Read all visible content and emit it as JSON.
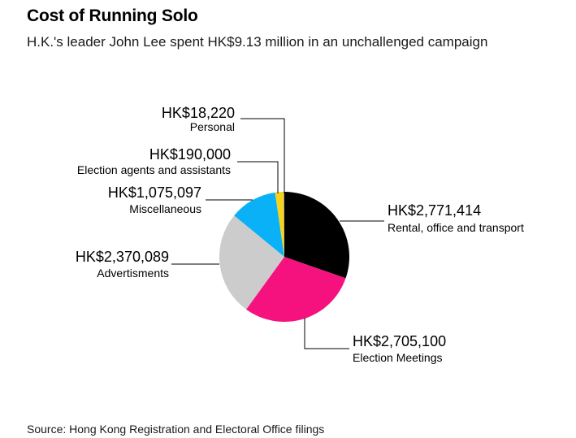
{
  "header": {
    "title": "Cost of Running Solo",
    "subtitle": "H.K.'s leader John Lee spent HK$9.13 million in an unchallenged campaign"
  },
  "footer": {
    "source": "Source: Hong Kong Registration and Electoral Office filings"
  },
  "chart_data": {
    "type": "pie",
    "title": "Cost of Running Solo",
    "subtitle": "H.K.'s leader John Lee spent HK$9.13 million in an unchallenged campaign",
    "slices": [
      {
        "category": "Rental, office and transport",
        "value": 2771414,
        "value_label": "HK$2,771,414",
        "color": "#000000"
      },
      {
        "category": "Election Meetings",
        "value": 2705100,
        "value_label": "HK$2,705,100",
        "color": "#f5127e"
      },
      {
        "category": "Advertisments",
        "value": 2370089,
        "value_label": "HK$2,370,089",
        "color": "#cccccc"
      },
      {
        "category": "Miscellaneous",
        "value": 1075097,
        "value_label": "HK$1,075,097",
        "color": "#0ab1f6"
      },
      {
        "category": "Election agents and assistants",
        "value": 190000,
        "value_label": "HK$190,000",
        "color": "#f6d21d"
      },
      {
        "category": "Personal",
        "value": 18220,
        "value_label": "HK$18,220",
        "color": "#9a9a9a"
      }
    ]
  }
}
